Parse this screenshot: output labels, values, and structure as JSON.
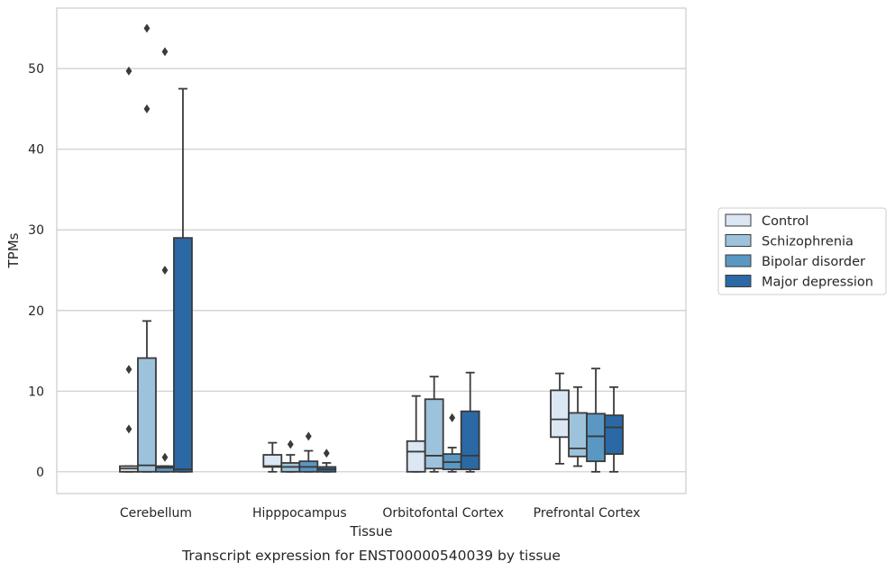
{
  "chart_data": {
    "type": "box",
    "xlabel": "Tissue",
    "ylabel": "TPMs",
    "caption": "Transcript expression for ENST00000540039 by tissue",
    "ylim": [
      -2.7,
      57.5
    ],
    "yticks": [
      0,
      10,
      20,
      30,
      40,
      50
    ],
    "grid": "horizontal",
    "legend_position": "right",
    "categories": [
      "Cerebellum",
      "Hipppocampus",
      "Orbitofontal Cortex",
      "Prefrontal Cortex"
    ],
    "series": [
      {
        "name": "Control",
        "color": "#dbe7f3",
        "boxes": [
          {
            "min": 0,
            "q1": 0,
            "median": 0.4,
            "q3": 0.7,
            "max": 0.7,
            "outliers": [
              5.3,
              12.7,
              49.7
            ]
          },
          {
            "min": 0,
            "q1": 0.6,
            "median": 0.7,
            "q3": 2.1,
            "max": 3.6,
            "outliers": []
          },
          {
            "min": 0,
            "q1": 0,
            "median": 2.5,
            "q3": 3.8,
            "max": 9.4,
            "outliers": []
          },
          {
            "min": 1.0,
            "q1": 4.3,
            "median": 6.5,
            "q3": 10.1,
            "max": 12.2,
            "outliers": []
          }
        ]
      },
      {
        "name": "Schizophrenia",
        "color": "#9dc3dc",
        "boxes": [
          {
            "min": 0,
            "q1": 0,
            "median": 0.8,
            "q3": 14.1,
            "max": 18.7,
            "outliers": [
              45.0,
              55.0
            ]
          },
          {
            "min": 0,
            "q1": 0,
            "median": 0.6,
            "q3": 1.1,
            "max": 2.1,
            "outliers": [
              3.4
            ]
          },
          {
            "min": 0,
            "q1": 0.4,
            "median": 2.0,
            "q3": 9.0,
            "max": 11.8,
            "outliers": []
          },
          {
            "min": 0.7,
            "q1": 1.9,
            "median": 2.9,
            "q3": 7.3,
            "max": 10.5,
            "outliers": []
          }
        ]
      },
      {
        "name": "Bipolar disorder",
        "color": "#5a98c4",
        "boxes": [
          {
            "min": 0,
            "q1": 0,
            "median": 0.5,
            "q3": 0.7,
            "max": 0.7,
            "outliers": [
              1.8,
              25.0,
              52.1
            ]
          },
          {
            "min": 0,
            "q1": 0,
            "median": 0.6,
            "q3": 1.3,
            "max": 2.6,
            "outliers": [
              4.4
            ]
          },
          {
            "min": 0,
            "q1": 0.3,
            "median": 1.2,
            "q3": 2.2,
            "max": 3.0,
            "outliers": [
              6.7
            ]
          },
          {
            "min": 0,
            "q1": 1.3,
            "median": 4.4,
            "q3": 7.2,
            "max": 12.8,
            "outliers": []
          }
        ]
      },
      {
        "name": "Major depression",
        "color": "#2a69a6",
        "boxes": [
          {
            "min": 0,
            "q1": 0,
            "median": 0.3,
            "q3": 29.0,
            "max": 47.5,
            "outliers": []
          },
          {
            "min": 0,
            "q1": 0,
            "median": 0.3,
            "q3": 0.6,
            "max": 1.1,
            "outliers": [
              2.3
            ]
          },
          {
            "min": 0,
            "q1": 0.3,
            "median": 2.0,
            "q3": 7.5,
            "max": 12.3,
            "outliers": []
          },
          {
            "min": 0,
            "q1": 2.2,
            "median": 5.5,
            "q3": 7.0,
            "max": 10.5,
            "outliers": []
          }
        ]
      }
    ]
  }
}
